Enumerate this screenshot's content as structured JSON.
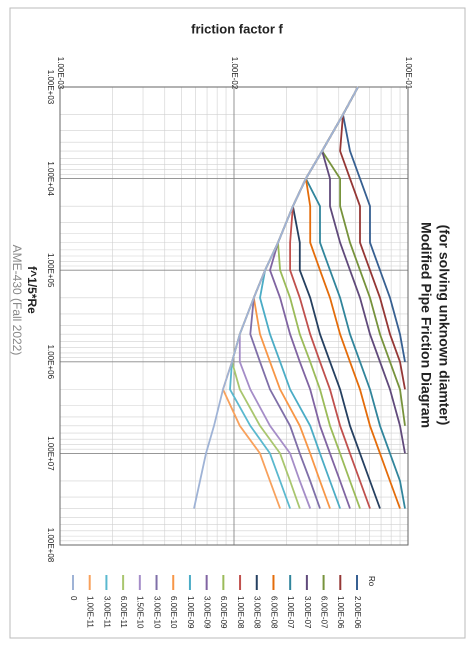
{
  "chart_data": {
    "type": "line",
    "title": [
      "Modified Pipe Friction Diagram",
      "(for solving unknown diamter)"
    ],
    "x_label": "f^1/5*Re",
    "y_label": "friction factor  f",
    "annotation": "AME-430 (Fall 2022)",
    "legend_title": "Ro",
    "log_x": true,
    "log_y": true,
    "grid": true,
    "minor_grid": true,
    "xlim": [
      1000,
      100000000
    ],
    "xticks": [
      {
        "value": 1000,
        "label": "1.00E+03"
      },
      {
        "value": 10000,
        "label": "1.00E+04"
      },
      {
        "value": 100000,
        "label": "1.00E+05"
      },
      {
        "value": 1000000,
        "label": "1.00E+06"
      },
      {
        "value": 10000000,
        "label": "1.00E+07"
      },
      {
        "value": 100000000,
        "label": "1.00E+08"
      }
    ],
    "ylim": [
      0.001,
      0.1
    ],
    "yticks": [
      {
        "value": 0.001,
        "label": "1.00E-03"
      },
      {
        "value": 0.01,
        "label": "1.00E-02"
      },
      {
        "value": 0.1,
        "label": "1.00E-01"
      }
    ],
    "x": [
      1000,
      2000,
      5000,
      10000,
      20000,
      50000,
      100000,
      200000,
      500000,
      1000000,
      2000000,
      5000000,
      10000000,
      20000000,
      40000000
    ],
    "series": [
      {
        "name": "2.00E-06",
        "color": "#376092",
        "values": [
          0.0516,
          0.0423,
          0.0464,
          0.053,
          0.0605,
          0.0605,
          0.069,
          0.0788,
          0.09,
          0.0961,
          null,
          null,
          null,
          null,
          null
        ]
      },
      {
        "name": "1.00E-06",
        "color": "#953735",
        "values": [
          0.0516,
          0.0423,
          0.0407,
          0.0464,
          0.053,
          0.053,
          0.0605,
          0.069,
          0.0788,
          0.09,
          0.0961,
          null,
          null,
          null,
          null
        ]
      },
      {
        "name": "6.00E-07",
        "color": "#77933c",
        "values": [
          0.0516,
          0.0423,
          0.0321,
          0.0407,
          0.0407,
          0.0464,
          0.053,
          0.0605,
          0.069,
          0.0788,
          0.09,
          0.0961,
          null,
          null,
          null
        ]
      },
      {
        "name": "3.00E-07",
        "color": "#604a7b",
        "values": [
          0.0516,
          0.0423,
          0.0321,
          0.0356,
          0.0356,
          0.0407,
          0.0464,
          0.053,
          0.0605,
          0.069,
          0.0788,
          0.09,
          0.0961,
          null,
          null
        ]
      },
      {
        "name": "1.00E-07",
        "color": "#31859c",
        "values": [
          0.0516,
          0.0423,
          0.0321,
          0.0259,
          0.0312,
          0.0312,
          0.0356,
          0.0407,
          0.0464,
          0.053,
          0.0605,
          0.069,
          0.0788,
          0.09,
          0.0961
        ]
      },
      {
        "name": "6.00E-08",
        "color": "#e46c0a",
        "values": [
          0.0516,
          0.0423,
          0.0321,
          0.0259,
          0.0274,
          0.0274,
          0.0312,
          0.0356,
          0.0407,
          0.0464,
          0.053,
          0.0605,
          0.069,
          0.0788,
          0.09
        ]
      },
      {
        "name": "3.00E-08",
        "color": "#254061",
        "values": [
          0.0516,
          0.0423,
          0.0321,
          0.0259,
          0.0218,
          0.0239,
          0.0239,
          0.0274,
          0.0312,
          0.0356,
          0.0407,
          0.0464,
          0.053,
          0.0605,
          0.069
        ]
      },
      {
        "name": "1.00E-08",
        "color": "#c0504d",
        "values": [
          0.0516,
          0.0423,
          0.0321,
          0.0259,
          0.0218,
          0.021,
          0.021,
          0.0239,
          0.0274,
          0.0312,
          0.0356,
          0.0407,
          0.0464,
          0.053,
          0.0605
        ]
      },
      {
        "name": "6.00E-09",
        "color": "#9bbb59",
        "values": [
          0.0516,
          0.0423,
          0.0321,
          0.0259,
          0.0218,
          0.0179,
          0.0184,
          0.021,
          0.0239,
          0.0274,
          0.0312,
          0.0356,
          0.0407,
          0.0464,
          0.053
        ]
      },
      {
        "name": "3.00E-09",
        "color": "#8064a2",
        "values": [
          0.0516,
          0.0423,
          0.0321,
          0.0259,
          0.0218,
          0.0179,
          0.0161,
          0.0184,
          0.021,
          0.0239,
          0.0274,
          0.0312,
          0.0356,
          0.0407,
          0.0464
        ]
      },
      {
        "name": "1.00E-09",
        "color": "#4bacc6",
        "values": [
          0.0516,
          0.0423,
          0.0321,
          0.0259,
          0.0218,
          0.0179,
          0.0151,
          0.0141,
          0.0161,
          0.0184,
          0.021,
          0.0274,
          0.0312,
          0.0356,
          0.0407
        ]
      },
      {
        "name": "6.00E-10",
        "color": "#f79646",
        "values": [
          0.0516,
          0.0423,
          0.0321,
          0.0259,
          0.0218,
          0.0179,
          0.0151,
          0.013,
          0.0141,
          0.0161,
          0.0184,
          0.0239,
          0.0274,
          0.0312,
          0.0356
        ]
      },
      {
        "name": "3.00E-10",
        "color": "#7f6fa8",
        "values": [
          0.0516,
          0.0423,
          0.0321,
          0.0259,
          0.0218,
          0.0179,
          0.0151,
          0.013,
          0.0124,
          0.0141,
          0.0161,
          0.021,
          0.0239,
          0.0274,
          0.0312
        ]
      },
      {
        "name": "1.50E-10",
        "color": "#a58dc8",
        "values": [
          0.0516,
          0.0423,
          0.0321,
          0.0259,
          0.0218,
          0.0179,
          0.0151,
          0.013,
          0.0108,
          0.0108,
          0.0124,
          0.0161,
          0.021,
          0.0239,
          0.0274
        ]
      },
      {
        "name": "6.00E-11",
        "color": "#a9c66e",
        "values": [
          0.0516,
          0.0423,
          0.0321,
          0.0259,
          0.0218,
          0.0179,
          0.0151,
          0.013,
          0.0108,
          0.00974,
          0.0108,
          0.0141,
          0.0184,
          0.021,
          0.0239
        ]
      },
      {
        "name": "3.00E-11",
        "color": "#5ab8cf",
        "values": [
          0.0516,
          0.0423,
          0.0321,
          0.0259,
          0.0218,
          0.0179,
          0.0151,
          0.013,
          0.0108,
          0.00974,
          0.00949,
          0.0124,
          0.0161,
          0.0184,
          0.021
        ]
      },
      {
        "name": "1.00E-11",
        "color": "#f8a15c",
        "values": [
          0.0516,
          0.0423,
          0.0321,
          0.0259,
          0.0218,
          0.0179,
          0.0151,
          0.013,
          0.0108,
          0.00974,
          0.00865,
          0.0108,
          0.0141,
          0.0161,
          0.0184
        ]
      },
      {
        "name": "0",
        "color": "#9fb3d6",
        "values": [
          0.0516,
          0.0423,
          0.0321,
          0.0259,
          0.0218,
          0.0179,
          0.0151,
          0.013,
          0.0108,
          0.00974,
          0.00865,
          0.00767,
          0.0069,
          0.00638,
          0.00589
        ]
      }
    ]
  }
}
